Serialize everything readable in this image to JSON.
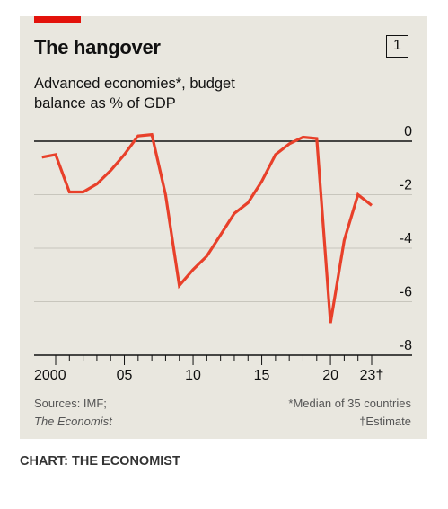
{
  "header": {
    "title": "The hangover",
    "chart_number": "1",
    "subtitle_line1": "Advanced economies*, budget",
    "subtitle_line2": "balance as % of GDP"
  },
  "footer": {
    "sources_label": "Sources: IMF;",
    "sources_name": "The Economist",
    "note_median": "*Median of 35 countries",
    "note_estimate": "†Estimate",
    "credit": "CHART: THE ECONOMIST"
  },
  "colors": {
    "accent": "#e3120b",
    "line": "#e8402a",
    "panel": "#e9e7df",
    "grid": "#c8c6bd"
  },
  "chart_data": {
    "type": "line",
    "title": "The hangover",
    "subtitle": "Advanced economies*, budget balance as % of GDP",
    "xlabel": "",
    "ylabel": "",
    "xlim": [
      2000,
      2023
    ],
    "ylim": [
      -8,
      0
    ],
    "y_ticks": [
      0,
      -2,
      -4,
      -6,
      -8
    ],
    "y_tick_labels": [
      "0",
      "-2",
      "-4",
      "-6",
      "-8"
    ],
    "x_tick_labels": [
      {
        "x": 2000,
        "label": "2000"
      },
      {
        "x": 2005,
        "label": "05"
      },
      {
        "x": 2010,
        "label": "10"
      },
      {
        "x": 2015,
        "label": "15"
      },
      {
        "x": 2020,
        "label": "20"
      },
      {
        "x": 2023,
        "label": "23†"
      }
    ],
    "grid": true,
    "series": [
      {
        "x": [
          1999,
          2000,
          2001,
          2002,
          2003,
          2004,
          2005,
          2006,
          2007,
          2008,
          2009,
          2010,
          2011,
          2012,
          2013,
          2014,
          2015,
          2016,
          2017,
          2018,
          2019,
          2020,
          2021,
          2022,
          2023
        ],
        "values": [
          -0.6,
          -0.5,
          -1.9,
          -1.9,
          -1.6,
          -1.1,
          -0.5,
          0.2,
          0.25,
          -2.0,
          -5.4,
          -4.8,
          -4.3,
          -3.5,
          -2.7,
          -2.3,
          -1.5,
          -0.5,
          -0.1,
          0.15,
          0.1,
          -6.8,
          -3.7,
          -2.0,
          -2.4
        ]
      }
    ]
  }
}
